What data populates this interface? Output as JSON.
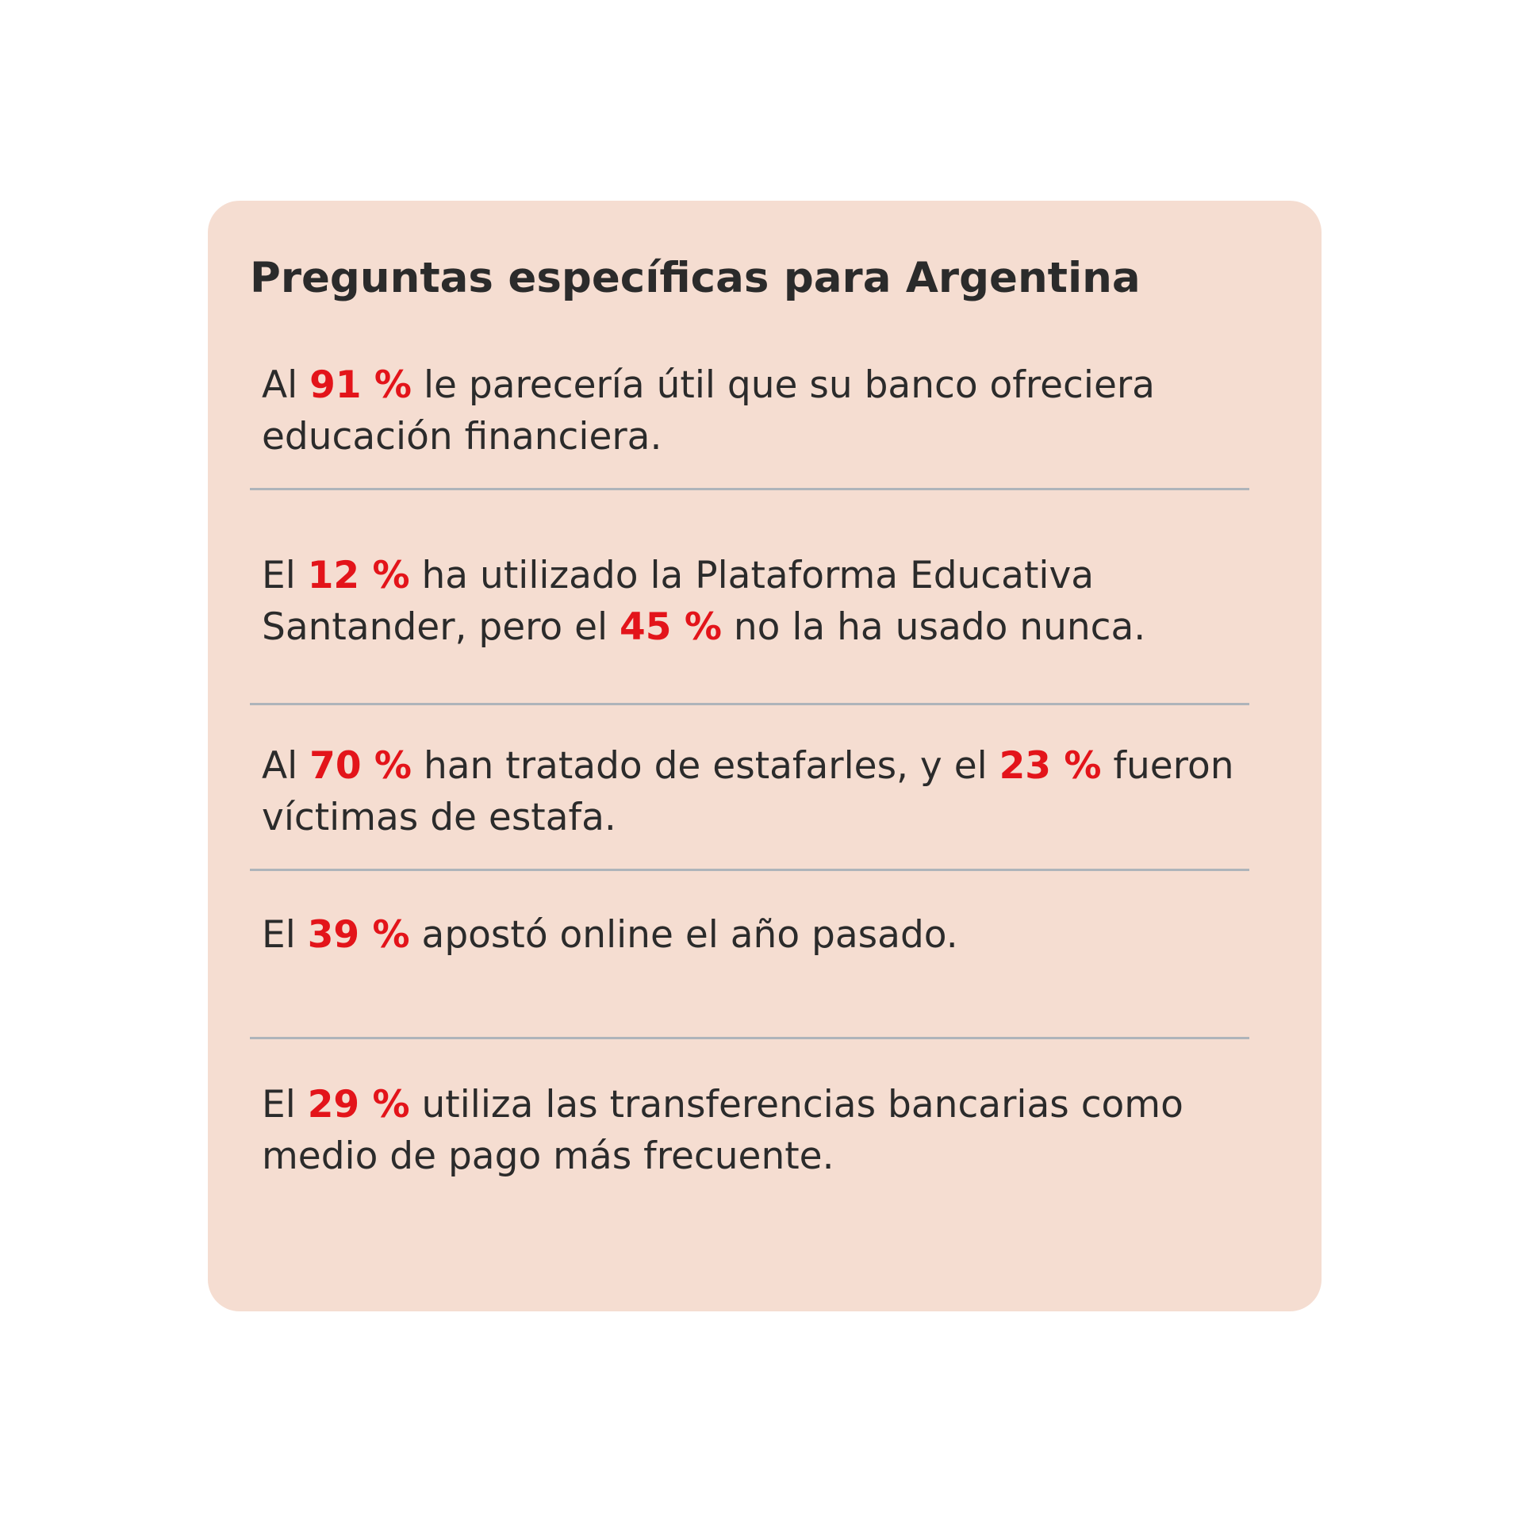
{
  "card": {
    "title": "Preguntas específicas para Argentina",
    "background_color": "#f5ddd1",
    "highlight_color": "#e3141a",
    "items": [
      {
        "parts": [
          {
            "text": "Al ",
            "highlight": false
          },
          {
            "text": "91 %",
            "highlight": true
          },
          {
            "text": " le parecería útil que su banco ofreciera educación financiera.",
            "highlight": false
          }
        ]
      },
      {
        "parts": [
          {
            "text": "El ",
            "highlight": false
          },
          {
            "text": "12 %",
            "highlight": true
          },
          {
            "text": " ha utilizado la Plataforma Educativa Santander, pero el ",
            "highlight": false
          },
          {
            "text": "45 %",
            "highlight": true
          },
          {
            "text": " no la ha usado nunca.",
            "highlight": false
          }
        ]
      },
      {
        "parts": [
          {
            "text": "Al ",
            "highlight": false
          },
          {
            "text": "70 %",
            "highlight": true
          },
          {
            "text": " han tratado de estafarles, y el ",
            "highlight": false
          },
          {
            "text": "23 %",
            "highlight": true
          },
          {
            "text": " fueron víctimas de estafa.",
            "highlight": false
          }
        ]
      },
      {
        "parts": [
          {
            "text": "El ",
            "highlight": false
          },
          {
            "text": "39 %",
            "highlight": true
          },
          {
            "text": " apostó online el año pasado.",
            "highlight": false
          }
        ]
      },
      {
        "parts": [
          {
            "text": "El ",
            "highlight": false
          },
          {
            "text": "29 %",
            "highlight": true
          },
          {
            "text": " utiliza las transferencias bancarias como medio de pago más frecuente.",
            "highlight": false
          }
        ]
      }
    ]
  }
}
